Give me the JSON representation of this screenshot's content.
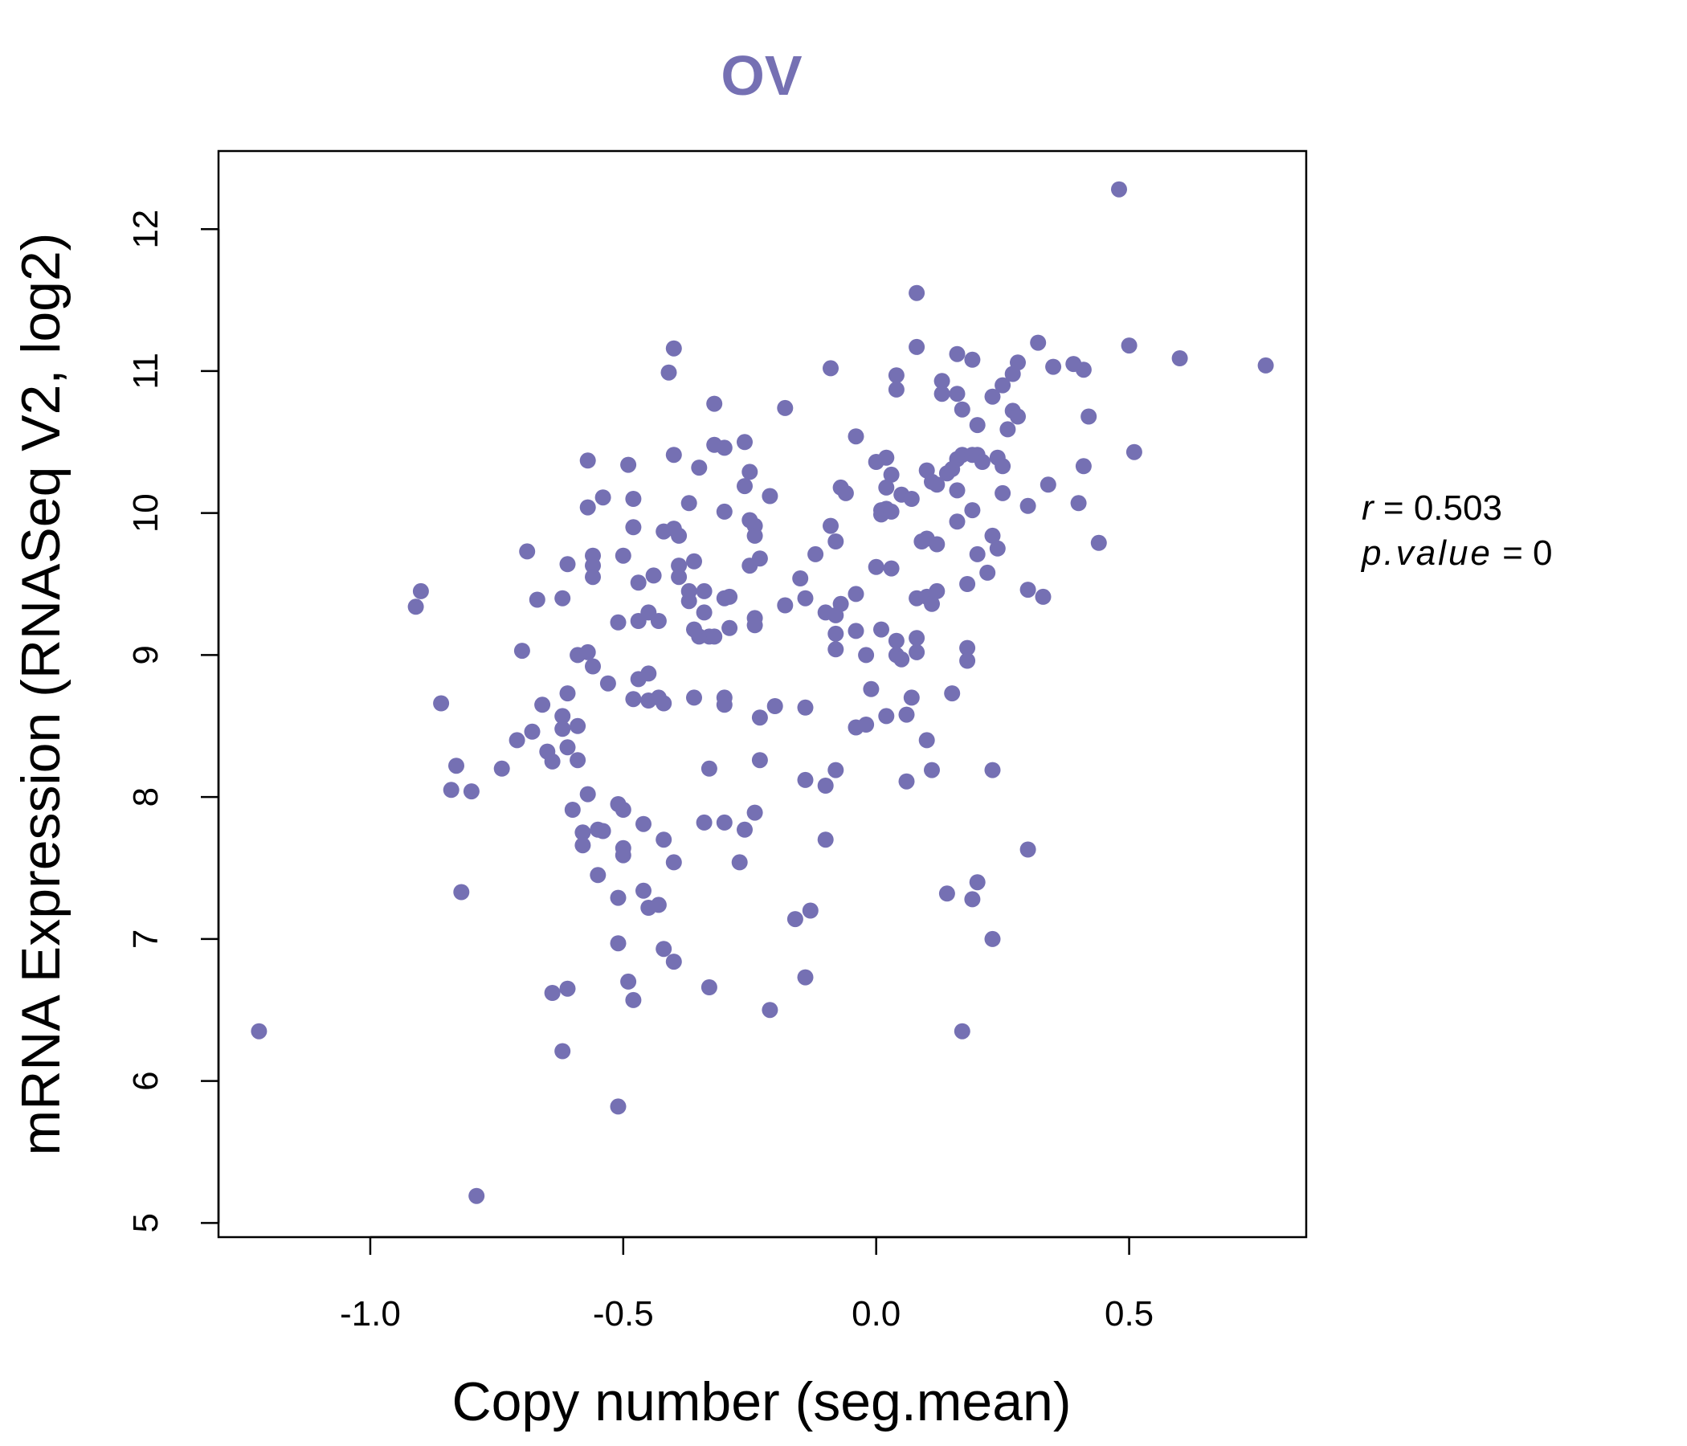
{
  "chart_data": {
    "type": "scatter",
    "title": "OV",
    "xlabel": "Copy number (seg.mean)",
    "ylabel": "mRNA Expression (RNASeq V2, log2)",
    "xlim": [
      -1.3,
      0.85
    ],
    "ylim": [
      4.9,
      12.55
    ],
    "xticks": [
      -1.0,
      -0.5,
      0.0,
      0.5
    ],
    "xtick_labels": [
      "-1.0",
      "-0.5",
      "0.0",
      "0.5"
    ],
    "yticks": [
      5,
      6,
      7,
      8,
      9,
      10,
      11,
      12
    ],
    "ytick_labels": [
      "5",
      "6",
      "7",
      "8",
      "9",
      "10",
      "11",
      "12"
    ],
    "point_color": "#7570b3",
    "stats": {
      "r_label": "r",
      "r_value": "0.503",
      "p_label": "p.value",
      "p_value": "0"
    },
    "points": [
      [
        -1.22,
        6.35
      ],
      [
        -0.79,
        5.19
      ],
      [
        -0.51,
        5.82
      ],
      [
        -0.91,
        9.34
      ],
      [
        -0.9,
        9.45
      ],
      [
        -0.86,
        8.66
      ],
      [
        -0.84,
        8.05
      ],
      [
        -0.83,
        8.22
      ],
      [
        -0.82,
        7.33
      ],
      [
        -0.8,
        8.04
      ],
      [
        -0.74,
        8.2
      ],
      [
        -0.71,
        8.4
      ],
      [
        -0.7,
        9.03
      ],
      [
        -0.69,
        9.73
      ],
      [
        -0.68,
        8.46
      ],
      [
        -0.67,
        9.39
      ],
      [
        -0.66,
        8.65
      ],
      [
        -0.65,
        8.32
      ],
      [
        -0.64,
        8.25
      ],
      [
        -0.64,
        6.62
      ],
      [
        -0.62,
        8.57
      ],
      [
        -0.62,
        8.48
      ],
      [
        -0.62,
        9.4
      ],
      [
        -0.62,
        6.21
      ],
      [
        -0.61,
        9.64
      ],
      [
        -0.61,
        8.73
      ],
      [
        -0.61,
        8.35
      ],
      [
        -0.61,
        6.65
      ],
      [
        -0.6,
        7.91
      ],
      [
        -0.59,
        8.5
      ],
      [
        -0.59,
        8.26
      ],
      [
        -0.59,
        9.0
      ],
      [
        -0.58,
        7.75
      ],
      [
        -0.58,
        7.66
      ],
      [
        -0.57,
        8.02
      ],
      [
        -0.57,
        9.02
      ],
      [
        -0.57,
        10.04
      ],
      [
        -0.57,
        10.37
      ],
      [
        -0.56,
        9.63
      ],
      [
        -0.56,
        9.7
      ],
      [
        -0.56,
        9.55
      ],
      [
        -0.56,
        8.92
      ],
      [
        -0.55,
        7.45
      ],
      [
        -0.55,
        7.77
      ],
      [
        -0.54,
        10.11
      ],
      [
        -0.54,
        7.76
      ],
      [
        -0.53,
        8.8
      ],
      [
        -0.51,
        9.23
      ],
      [
        -0.51,
        7.95
      ],
      [
        -0.51,
        7.29
      ],
      [
        -0.51,
        6.97
      ],
      [
        -0.5,
        9.7
      ],
      [
        -0.5,
        7.91
      ],
      [
        -0.5,
        7.64
      ],
      [
        -0.5,
        7.59
      ],
      [
        -0.49,
        6.7
      ],
      [
        -0.49,
        10.34
      ],
      [
        -0.48,
        10.1
      ],
      [
        -0.48,
        9.9
      ],
      [
        -0.48,
        8.69
      ],
      [
        -0.48,
        6.57
      ],
      [
        -0.47,
        9.51
      ],
      [
        -0.47,
        9.24
      ],
      [
        -0.47,
        8.83
      ],
      [
        -0.46,
        7.81
      ],
      [
        -0.46,
        7.34
      ],
      [
        -0.45,
        9.3
      ],
      [
        -0.45,
        8.87
      ],
      [
        -0.45,
        8.68
      ],
      [
        -0.45,
        7.22
      ],
      [
        -0.44,
        9.56
      ],
      [
        -0.43,
        9.24
      ],
      [
        -0.43,
        8.7
      ],
      [
        -0.43,
        7.24
      ],
      [
        -0.42,
        9.87
      ],
      [
        -0.42,
        8.66
      ],
      [
        -0.42,
        7.7
      ],
      [
        -0.42,
        6.93
      ],
      [
        -0.41,
        10.99
      ],
      [
        -0.4,
        11.16
      ],
      [
        -0.4,
        10.41
      ],
      [
        -0.4,
        9.89
      ],
      [
        -0.4,
        7.54
      ],
      [
        -0.4,
        6.84
      ],
      [
        -0.39,
        9.84
      ],
      [
        -0.39,
        9.63
      ],
      [
        -0.39,
        9.55
      ],
      [
        -0.37,
        10.07
      ],
      [
        -0.37,
        9.45
      ],
      [
        -0.37,
        9.38
      ],
      [
        -0.36,
        9.66
      ],
      [
        -0.36,
        9.18
      ],
      [
        -0.36,
        8.7
      ],
      [
        -0.35,
        10.32
      ],
      [
        -0.35,
        9.13
      ],
      [
        -0.34,
        9.45
      ],
      [
        -0.34,
        9.3
      ],
      [
        -0.34,
        7.82
      ],
      [
        -0.33,
        9.13
      ],
      [
        -0.33,
        8.2
      ],
      [
        -0.33,
        6.66
      ],
      [
        -0.32,
        10.77
      ],
      [
        -0.32,
        10.48
      ],
      [
        -0.32,
        9.13
      ],
      [
        -0.3,
        10.46
      ],
      [
        -0.3,
        10.01
      ],
      [
        -0.3,
        9.4
      ],
      [
        -0.3,
        8.7
      ],
      [
        -0.3,
        8.65
      ],
      [
        -0.3,
        7.82
      ],
      [
        -0.29,
        9.41
      ],
      [
        -0.29,
        9.19
      ],
      [
        -0.26,
        10.5
      ],
      [
        -0.26,
        10.19
      ],
      [
        -0.26,
        7.77
      ],
      [
        -0.27,
        7.54
      ],
      [
        -0.25,
        10.29
      ],
      [
        -0.25,
        9.95
      ],
      [
        -0.25,
        9.63
      ],
      [
        -0.24,
        9.91
      ],
      [
        -0.24,
        9.84
      ],
      [
        -0.24,
        9.26
      ],
      [
        -0.24,
        9.21
      ],
      [
        -0.23,
        9.68
      ],
      [
        -0.23,
        8.56
      ],
      [
        -0.23,
        8.26
      ],
      [
        -0.24,
        7.89
      ],
      [
        -0.21,
        10.12
      ],
      [
        -0.2,
        8.64
      ],
      [
        -0.21,
        6.5
      ],
      [
        -0.18,
        10.74
      ],
      [
        -0.18,
        9.35
      ],
      [
        -0.16,
        7.14
      ],
      [
        -0.15,
        9.54
      ],
      [
        -0.14,
        9.4
      ],
      [
        -0.14,
        8.63
      ],
      [
        -0.14,
        8.12
      ],
      [
        -0.13,
        7.2
      ],
      [
        -0.14,
        6.73
      ],
      [
        -0.12,
        9.71
      ],
      [
        -0.1,
        9.3
      ],
      [
        -0.1,
        8.08
      ],
      [
        -0.1,
        7.7
      ],
      [
        -0.09,
        11.02
      ],
      [
        -0.09,
        9.91
      ],
      [
        -0.08,
        9.8
      ],
      [
        -0.08,
        9.28
      ],
      [
        -0.08,
        9.15
      ],
      [
        -0.08,
        9.04
      ],
      [
        -0.08,
        8.19
      ],
      [
        -0.07,
        10.18
      ],
      [
        -0.07,
        9.36
      ],
      [
        -0.06,
        10.14
      ],
      [
        -0.04,
        9.43
      ],
      [
        -0.04,
        9.17
      ],
      [
        -0.04,
        8.49
      ],
      [
        -0.04,
        10.54
      ],
      [
        -0.02,
        8.51
      ],
      [
        -0.02,
        9.0
      ],
      [
        -0.01,
        8.76
      ],
      [
        0.0,
        10.36
      ],
      [
        0.0,
        9.62
      ],
      [
        0.01,
        10.02
      ],
      [
        0.01,
        9.99
      ],
      [
        0.01,
        9.18
      ],
      [
        0.02,
        10.39
      ],
      [
        0.02,
        10.18
      ],
      [
        0.02,
        10.03
      ],
      [
        0.02,
        8.57
      ],
      [
        0.03,
        9.61
      ],
      [
        0.03,
        10.27
      ],
      [
        0.03,
        10.01
      ],
      [
        0.04,
        10.97
      ],
      [
        0.04,
        10.87
      ],
      [
        0.04,
        9.1
      ],
      [
        0.04,
        9.0
      ],
      [
        0.05,
        8.97
      ],
      [
        0.05,
        10.13
      ],
      [
        0.06,
        8.58
      ],
      [
        0.06,
        8.11
      ],
      [
        0.07,
        10.1
      ],
      [
        0.07,
        8.7
      ],
      [
        0.08,
        11.55
      ],
      [
        0.08,
        11.17
      ],
      [
        0.08,
        9.4
      ],
      [
        0.08,
        9.12
      ],
      [
        0.08,
        9.02
      ],
      [
        0.09,
        9.8
      ],
      [
        0.1,
        10.3
      ],
      [
        0.1,
        9.82
      ],
      [
        0.1,
        9.41
      ],
      [
        0.1,
        8.4
      ],
      [
        0.11,
        10.22
      ],
      [
        0.11,
        9.36
      ],
      [
        0.11,
        8.19
      ],
      [
        0.12,
        10.2
      ],
      [
        0.12,
        9.78
      ],
      [
        0.12,
        9.45
      ],
      [
        0.13,
        10.93
      ],
      [
        0.13,
        10.84
      ],
      [
        0.14,
        10.28
      ],
      [
        0.14,
        7.32
      ],
      [
        0.15,
        10.31
      ],
      [
        0.15,
        8.73
      ],
      [
        0.16,
        11.12
      ],
      [
        0.16,
        10.84
      ],
      [
        0.16,
        10.38
      ],
      [
        0.16,
        10.16
      ],
      [
        0.16,
        9.94
      ],
      [
        0.17,
        10.73
      ],
      [
        0.17,
        10.41
      ],
      [
        0.18,
        9.5
      ],
      [
        0.18,
        9.05
      ],
      [
        0.18,
        8.96
      ],
      [
        0.17,
        6.35
      ],
      [
        0.19,
        11.08
      ],
      [
        0.19,
        10.41
      ],
      [
        0.19,
        10.02
      ],
      [
        0.19,
        7.28
      ],
      [
        0.2,
        10.62
      ],
      [
        0.2,
        10.41
      ],
      [
        0.2,
        9.71
      ],
      [
        0.2,
        7.4
      ],
      [
        0.21,
        10.36
      ],
      [
        0.22,
        9.58
      ],
      [
        0.23,
        10.82
      ],
      [
        0.23,
        9.84
      ],
      [
        0.23,
        8.19
      ],
      [
        0.23,
        7.0
      ],
      [
        0.24,
        10.39
      ],
      [
        0.24,
        9.75
      ],
      [
        0.25,
        10.9
      ],
      [
        0.25,
        10.14
      ],
      [
        0.25,
        10.33
      ],
      [
        0.26,
        10.59
      ],
      [
        0.27,
        10.72
      ],
      [
        0.27,
        10.98
      ],
      [
        0.28,
        11.06
      ],
      [
        0.28,
        10.68
      ],
      [
        0.3,
        10.05
      ],
      [
        0.3,
        9.46
      ],
      [
        0.3,
        7.63
      ],
      [
        0.32,
        11.2
      ],
      [
        0.33,
        9.41
      ],
      [
        0.34,
        10.2
      ],
      [
        0.35,
        11.03
      ],
      [
        0.39,
        11.05
      ],
      [
        0.4,
        10.07
      ],
      [
        0.41,
        11.01
      ],
      [
        0.41,
        10.33
      ],
      [
        0.42,
        10.68
      ],
      [
        0.44,
        9.79
      ],
      [
        0.48,
        12.28
      ],
      [
        0.5,
        11.18
      ],
      [
        0.51,
        10.43
      ],
      [
        0.6,
        11.09
      ],
      [
        0.77,
        11.04
      ]
    ]
  }
}
